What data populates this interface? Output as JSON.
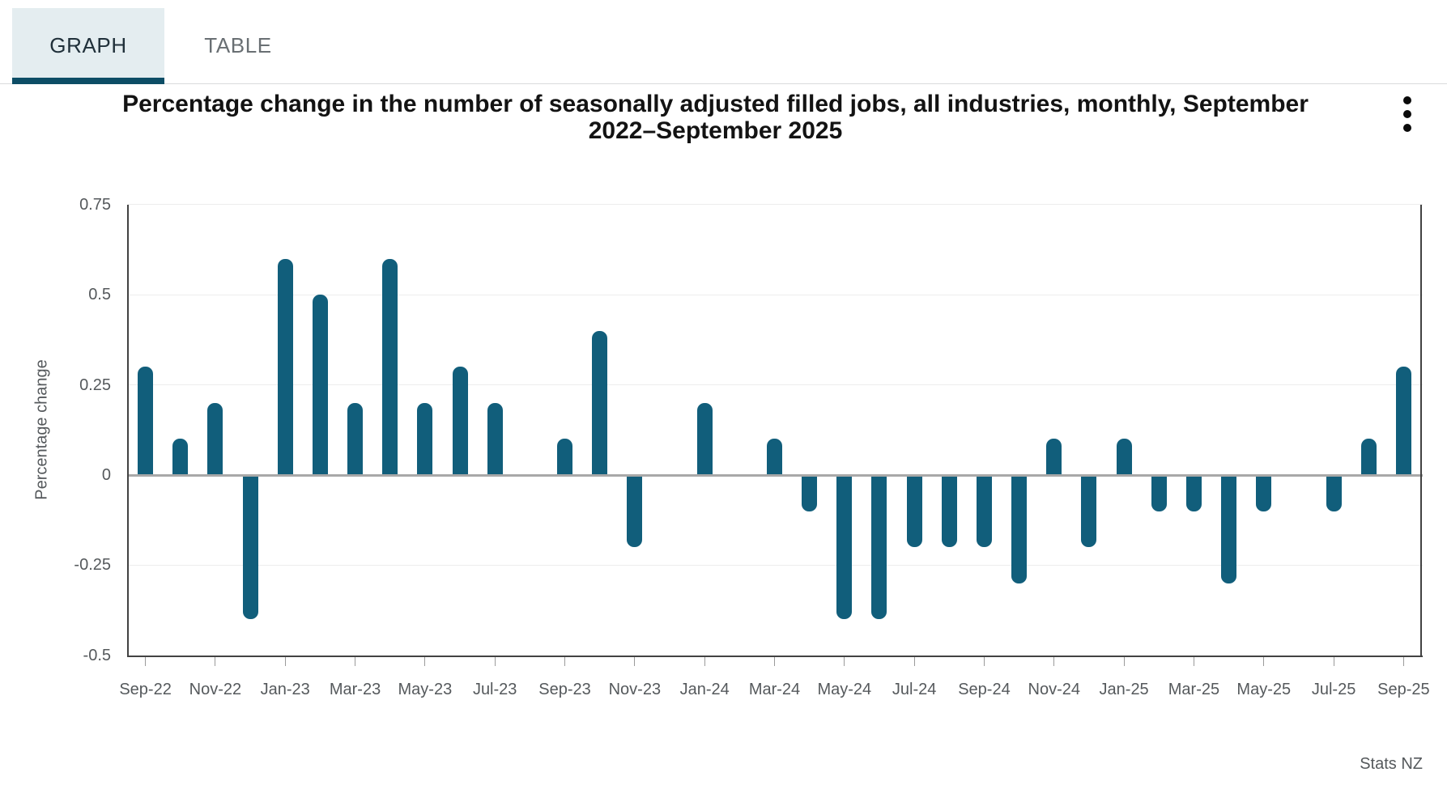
{
  "tabs": {
    "graph_label": "GRAPH",
    "table_label": "TABLE"
  },
  "title": {
    "line1": "Percentage change in the number of seasonally adjusted filled jobs, all industries, monthly, September",
    "line2": "2022–September 2025"
  },
  "icons": {
    "overflow_menu": "kebab-vertical-three-dots"
  },
  "footer": {
    "source": "Stats NZ"
  },
  "colors": {
    "bar": "#115e7b",
    "tab_active_bg": "#e4edf0",
    "tab_active_underline": "#0d4d66",
    "axis_text": "#55595c",
    "gridline": "#ededed",
    "zero_line": "#a8a8a8",
    "spine": "#424242",
    "title_text": "#131313"
  },
  "chart_data": {
    "type": "bar",
    "title": "Percentage change in the number of seasonally adjusted filled jobs, all industries, monthly, September 2022–September 2025",
    "xlabel": "",
    "ylabel": "Percentage change",
    "x": [
      "Sep-22",
      "Oct-22",
      "Nov-22",
      "Dec-22",
      "Jan-23",
      "Feb-23",
      "Mar-23",
      "Apr-23",
      "May-23",
      "Jun-23",
      "Jul-23",
      "Aug-23",
      "Sep-23",
      "Oct-23",
      "Nov-23",
      "Dec-23",
      "Jan-24",
      "Feb-24",
      "Mar-24",
      "Apr-24",
      "May-24",
      "Jun-24",
      "Jul-24",
      "Aug-24",
      "Sep-24",
      "Oct-24",
      "Nov-24",
      "Dec-24",
      "Jan-25",
      "Feb-25",
      "Mar-25",
      "Apr-25",
      "May-25",
      "Jun-25",
      "Jul-25",
      "Aug-25",
      "Sep-25"
    ],
    "values": [
      0.3,
      0.1,
      0.2,
      -0.4,
      0.6,
      0.5,
      0.2,
      0.6,
      0.2,
      0.3,
      0.2,
      0.0,
      0.1,
      0.4,
      -0.2,
      0.0,
      0.2,
      0.0,
      0.1,
      -0.1,
      -0.4,
      -0.4,
      -0.2,
      -0.2,
      -0.2,
      -0.3,
      0.1,
      -0.2,
      0.1,
      -0.1,
      -0.1,
      -0.3,
      -0.1,
      0.0,
      -0.1,
      0.1,
      0.3
    ],
    "x_tick_labels": [
      "Sep-22",
      "Nov-22",
      "Jan-23",
      "Mar-23",
      "May-23",
      "Jul-23",
      "Sep-23",
      "Nov-23",
      "Jan-24",
      "Mar-24",
      "May-24",
      "Jul-24",
      "Sep-24",
      "Nov-24",
      "Jan-25",
      "Mar-25",
      "May-25",
      "Jul-25",
      "Sep-25"
    ],
    "yticks": [
      {
        "label": "0.75",
        "value": 0.75
      },
      {
        "label": "0.5",
        "value": 0.5
      },
      {
        "label": "0.25",
        "value": 0.25
      },
      {
        "label": "0",
        "value": 0
      },
      {
        "label": "-0.25",
        "value": -0.25
      },
      {
        "label": "-0.5",
        "value": -0.5
      }
    ],
    "ylim": [
      -0.5,
      0.75
    ],
    "grid": "horizontal",
    "legend": false,
    "bar_color": "#115e7b",
    "source": "Stats NZ"
  }
}
